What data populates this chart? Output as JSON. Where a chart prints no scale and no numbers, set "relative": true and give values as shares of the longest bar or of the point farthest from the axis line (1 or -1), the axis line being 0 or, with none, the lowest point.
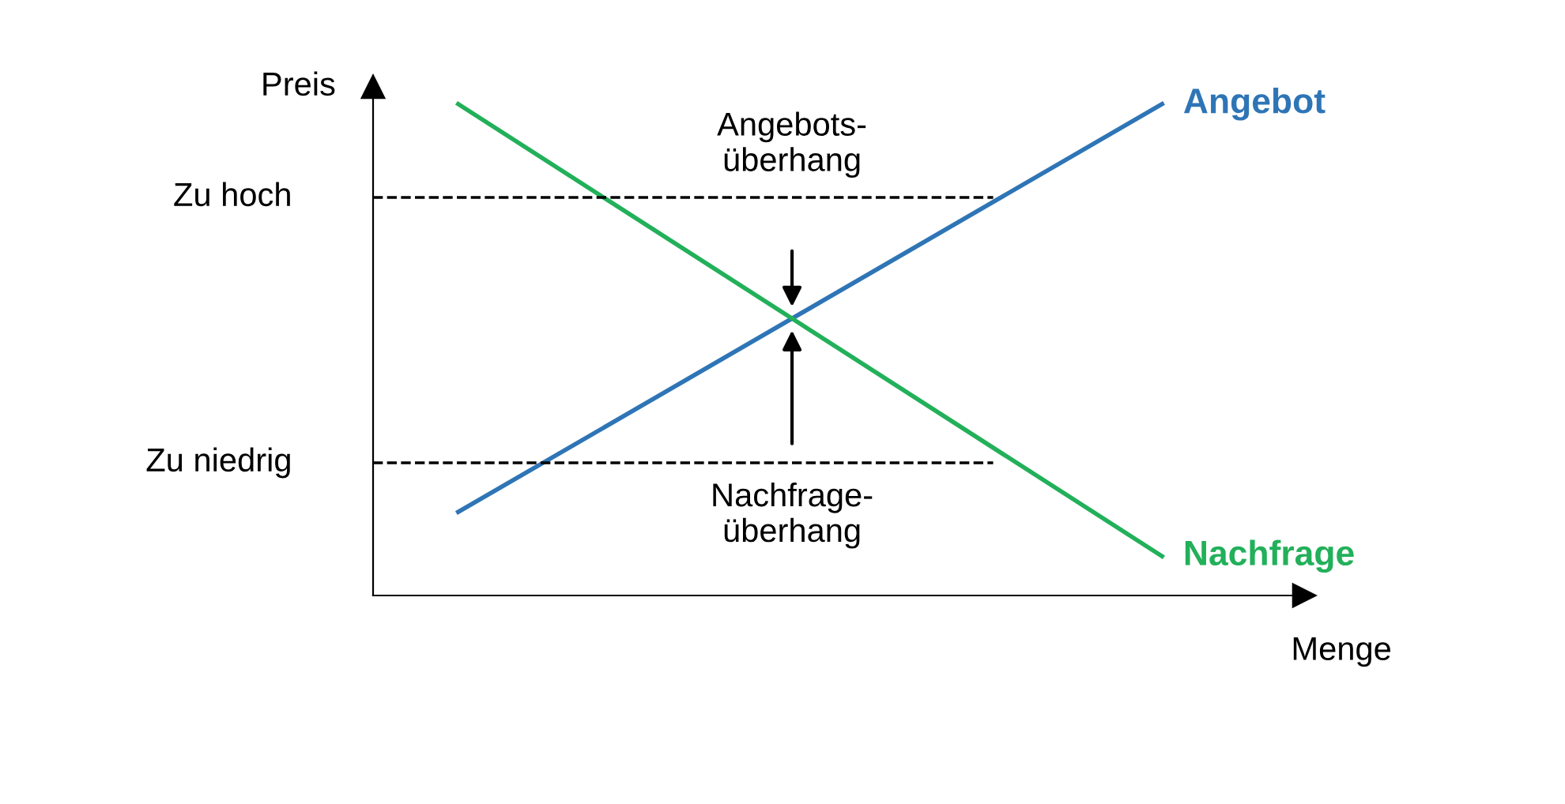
{
  "chart_data": {
    "type": "line",
    "relative": true,
    "xlabel": "Menge",
    "ylabel": "Preis",
    "categories": [
      null,
      null
    ],
    "line_style": "solid",
    "series": [
      {
        "name": "Angebot",
        "color": "#2e75b6",
        "values": [
          0.17,
          1
        ]
      },
      {
        "name": "Nachfrage",
        "color": "#22b05a",
        "values": [
          1,
          0.08
        ]
      }
    ],
    "ref_lines": [
      {
        "axis": "y",
        "value": 0.81,
        "label": "Zu hoch",
        "line_style": "dashed",
        "color": "#000000"
      },
      {
        "axis": "y",
        "value": 0.27,
        "label": "Zu niedrig",
        "line_style": "dashed",
        "color": "#000000"
      }
    ],
    "annotations": [
      "Angebots-\nüberhang",
      "Nachfrage-\nüberhang"
    ]
  }
}
